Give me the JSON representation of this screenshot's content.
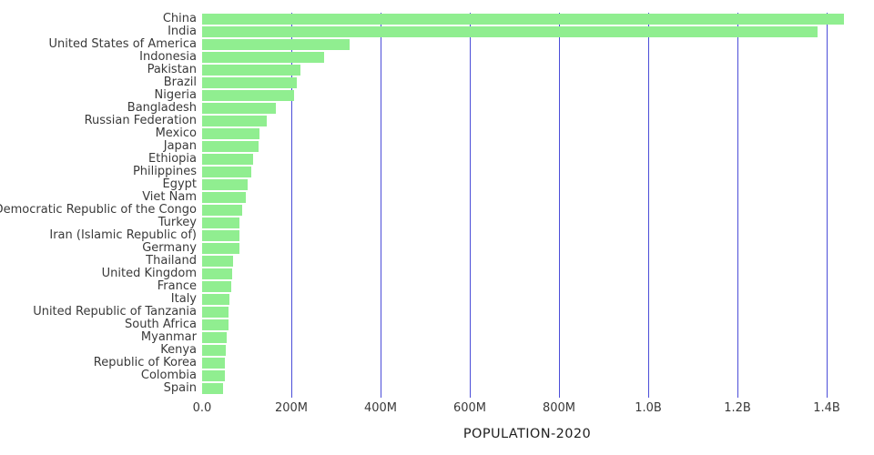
{
  "chart_data": {
    "type": "bar",
    "orientation": "horizontal",
    "title": "",
    "xlabel": "POPULATION-2020",
    "ylabel": "",
    "value_unit": "millions",
    "xlim_millions": [
      0,
      1450
    ],
    "grid": true,
    "legend": false,
    "colors": {
      "bar": "#90ee90",
      "gridline": "#4b4dd8",
      "text": "#3a3a3a",
      "background": "#ffffff"
    },
    "x_ticks": [
      {
        "value_millions": 0,
        "label": "0.0"
      },
      {
        "value_millions": 200,
        "label": "200M"
      },
      {
        "value_millions": 400,
        "label": "400M"
      },
      {
        "value_millions": 600,
        "label": "600M"
      },
      {
        "value_millions": 800,
        "label": "800M"
      },
      {
        "value_millions": 1000,
        "label": "1.0B"
      },
      {
        "value_millions": 1200,
        "label": "1.2B"
      },
      {
        "value_millions": 1400,
        "label": "1.4B"
      }
    ],
    "categories": [
      "China",
      "India",
      "United States of America",
      "Indonesia",
      "Pakistan",
      "Brazil",
      "Nigeria",
      "Bangladesh",
      "Russian Federation",
      "Mexico",
      "Japan",
      "Ethiopia",
      "Philippines",
      "Egypt",
      "Viet Nam",
      "Democratic Republic of the Congo",
      "Turkey",
      "Iran (Islamic Republic of)",
      "Germany",
      "Thailand",
      "United Kingdom",
      "France",
      "Italy",
      "United Republic of Tanzania",
      "South Africa",
      "Myanmar",
      "Kenya",
      "Republic of Korea",
      "Colombia",
      "Spain"
    ],
    "values": [
      1439.3,
      1380.0,
      331.0,
      273.5,
      220.9,
      212.6,
      206.1,
      164.7,
      145.9,
      128.9,
      126.5,
      115.0,
      109.6,
      102.3,
      97.3,
      89.6,
      84.3,
      84.0,
      83.8,
      69.8,
      67.9,
      65.3,
      60.5,
      59.7,
      59.3,
      54.4,
      53.8,
      51.3,
      50.9,
      46.8
    ]
  }
}
